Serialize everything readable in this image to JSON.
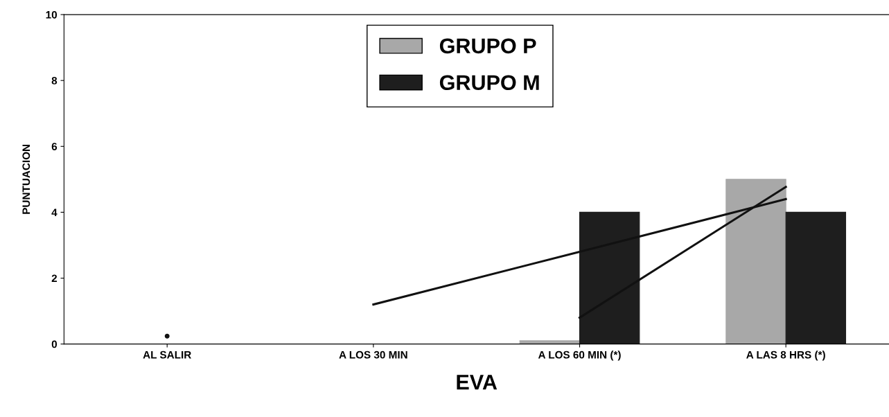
{
  "chart_data": {
    "type": "bar",
    "xlabel": "EVA",
    "ylabel": "PUNTUACION",
    "categories": [
      "AL SALIR",
      "A LOS 30 MIN",
      "A LOS 60 MIN (*)",
      "A LAS 8 HRS (*)"
    ],
    "series": [
      {
        "name": "GRUPO P",
        "color": "#a8a8a8",
        "values": [
          0,
          0,
          0.1,
          5
        ]
      },
      {
        "name": "GRUPO M",
        "color": "#1e1e1e",
        "values": [
          0,
          0,
          4,
          4
        ]
      },
      {
        "type": "line",
        "color": "#111111",
        "values": [
          0.24,
          null,
          0.8,
          4.77
        ]
      },
      {
        "type": "line",
        "color": "#111111",
        "values": [
          null,
          1.2,
          2.8,
          4.4
        ]
      }
    ],
    "ylim": [
      0,
      10
    ],
    "yticks": [
      0,
      2,
      4,
      6,
      8,
      10
    ],
    "grid": false,
    "legend": "top"
  }
}
